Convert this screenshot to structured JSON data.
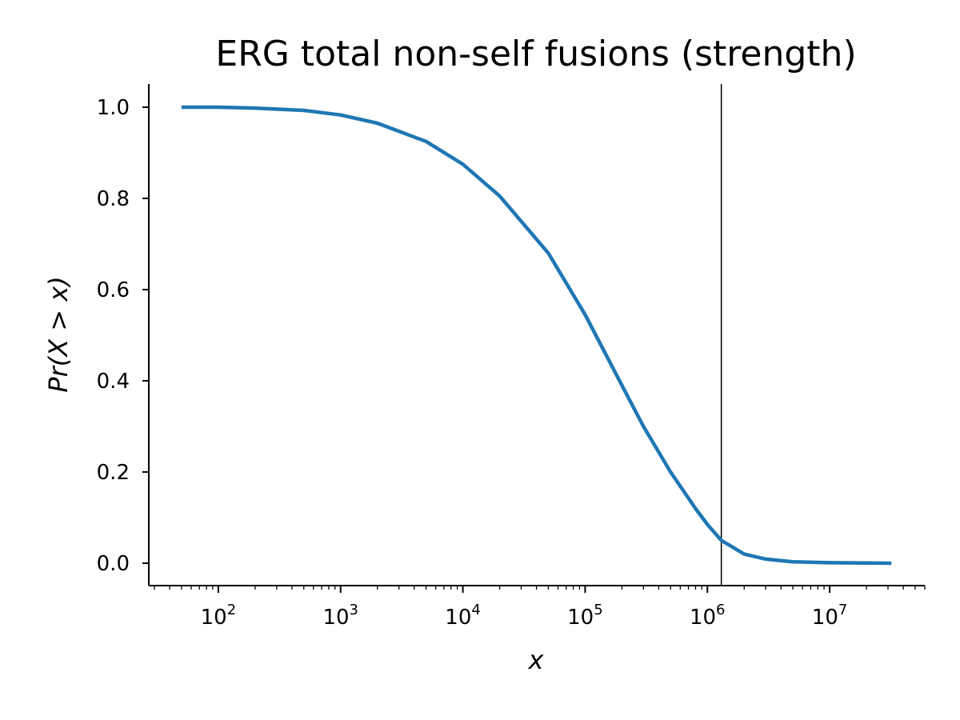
{
  "chart_data": {
    "type": "line",
    "title": "ERG total non-self fusions (strength)",
    "xlabel": "x",
    "ylabel": "Pr(X > x)",
    "x_scale": "log",
    "xlim": [
      27,
      60000000
    ],
    "ylim": [
      -0.05,
      1.05
    ],
    "x_ticks": [
      100,
      1000,
      10000,
      100000,
      1000000,
      10000000
    ],
    "x_tick_labels": [
      {
        "base": "10",
        "exp": "2"
      },
      {
        "base": "10",
        "exp": "3"
      },
      {
        "base": "10",
        "exp": "4"
      },
      {
        "base": "10",
        "exp": "5"
      },
      {
        "base": "10",
        "exp": "6"
      },
      {
        "base": "10",
        "exp": "7"
      }
    ],
    "y_ticks": [
      0.0,
      0.2,
      0.4,
      0.6,
      0.8,
      1.0
    ],
    "y_tick_labels": [
      "0.0",
      "0.2",
      "0.4",
      "0.6",
      "0.8",
      "1.0"
    ],
    "grid": false,
    "series": [
      {
        "color": "#1f77b4",
        "x": [
          50,
          100,
          200,
          500,
          1000,
          2000,
          5000,
          10000,
          20000,
          50000,
          100000,
          200000,
          300000,
          500000,
          800000,
          1000000,
          1300000,
          2000000,
          3000000,
          5000000,
          10000000,
          32000000
        ],
        "y": [
          1.0,
          1.0,
          0.998,
          0.993,
          0.983,
          0.965,
          0.925,
          0.875,
          0.805,
          0.68,
          0.545,
          0.39,
          0.3,
          0.2,
          0.12,
          0.085,
          0.05,
          0.02,
          0.009,
          0.003,
          0.001,
          0.0
        ]
      }
    ],
    "vline": {
      "x": 1300000,
      "color": "#000000"
    }
  }
}
